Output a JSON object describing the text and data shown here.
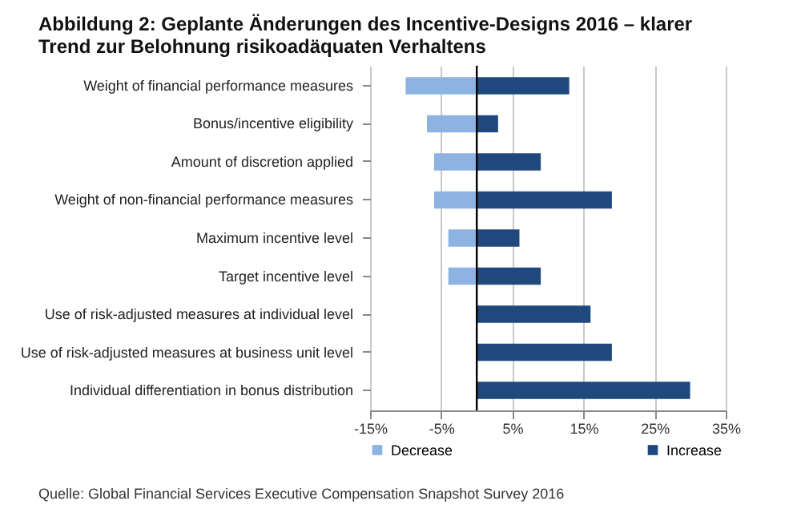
{
  "chart_data": {
    "type": "bar",
    "orientation": "horizontal",
    "stacked": true,
    "title": "Abbildung 2: Geplante Änderungen des Incentive-Designs 2016 – klarer Trend zur Belohnung risikoadäquaten Verhaltens",
    "categories": [
      "Weight of financial performance measures",
      "Bonus/incentive eligibility",
      "Amount of discretion applied",
      "Weight of non-financial performance measures",
      "Maximum incentive level",
      "Target incentive level",
      "Use of risk-adjusted measures at individual level",
      "Use of risk-adjusted measures at business unit level",
      "Individual differentiation in bonus distribution"
    ],
    "series": [
      {
        "name": "Decrease",
        "color": "#8db3e2",
        "values": [
          -10,
          -7,
          -6,
          -6,
          -4,
          -4,
          null,
          null,
          null
        ]
      },
      {
        "name": "Increase",
        "color": "#1f497d",
        "values": [
          13,
          3,
          9,
          19,
          6,
          9,
          16,
          19,
          30
        ]
      }
    ],
    "xlim": [
      -15,
      35
    ],
    "xticks": [
      {
        "value": -15,
        "label": "-15%"
      },
      {
        "value": -5,
        "label": "-5%"
      },
      {
        "value": 5,
        "label": "5%"
      },
      {
        "value": 15,
        "label": "15%"
      },
      {
        "value": 25,
        "label": "25%"
      },
      {
        "value": 35,
        "label": "35%"
      }
    ],
    "ref_lines": [
      {
        "axis": "x",
        "value": 0,
        "color": "#000000"
      }
    ],
    "grid": "x",
    "legend": "bottom",
    "annotations": [
      "Quelle: Global Financial Services Executive Compensation Snapshot Survey 2016"
    ]
  }
}
